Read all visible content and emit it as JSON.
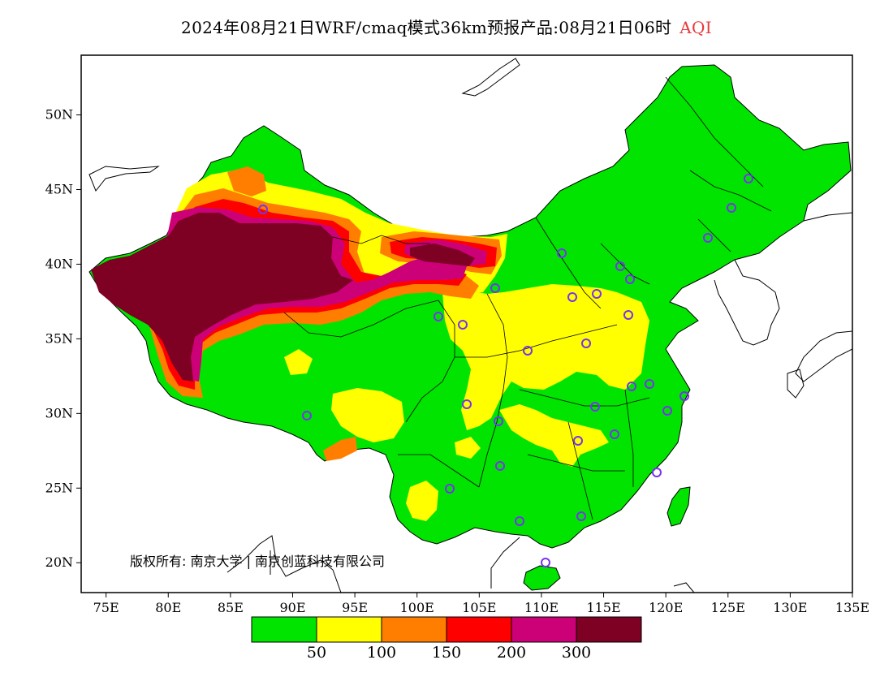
{
  "title": {
    "main": "2024年08月21日WRF/cmaq模式36km预报产品:08月21日06时",
    "variable": "AQI"
  },
  "axes": {
    "lat_ticks": [
      "50N",
      "45N",
      "40N",
      "35N",
      "30N",
      "25N",
      "20N"
    ],
    "lon_ticks": [
      "75E",
      "80E",
      "85E",
      "90E",
      "95E",
      "100E",
      "105E",
      "110E",
      "115E",
      "120E",
      "125E",
      "130E",
      "135E"
    ],
    "lon_range": [
      73,
      135
    ],
    "lat_range": [
      18,
      54
    ]
  },
  "copyright": "版权所有: 南京大学 | 南京创蓝科技有限公司",
  "legend": {
    "colors": [
      "#00e400",
      "#ffff00",
      "#ff7e00",
      "#ff0000",
      "#cc0077",
      "#7e0023"
    ],
    "labels": [
      "50",
      "100",
      "150",
      "200",
      "300"
    ]
  },
  "colors": {
    "good": "#00e400",
    "moderate": "#ffff00",
    "usg": "#ff7e00",
    "unhealthy": "#ff0000",
    "very_unhealthy": "#cc0077",
    "hazardous": "#7e0023",
    "station_marker": "#7733ee"
  }
}
